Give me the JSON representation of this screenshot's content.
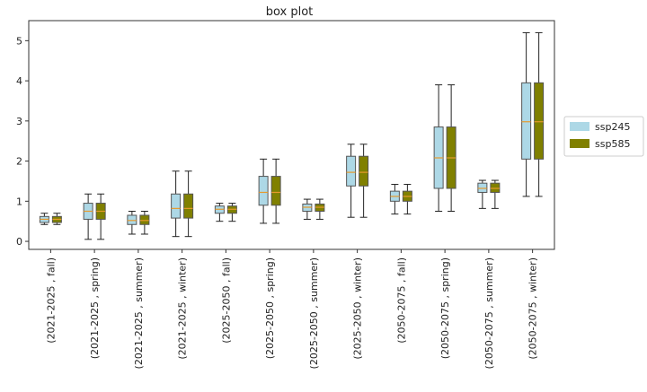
{
  "chart_data": {
    "type": "box",
    "title": "box plot",
    "xlabel": "",
    "ylabel": "",
    "ylim": [
      -0.2,
      5.5
    ],
    "yticks": [
      0,
      1,
      2,
      3,
      4,
      5
    ],
    "legend": "right",
    "grid": false,
    "categories": [
      "(2021-2025 , fall)",
      "(2021-2025 , spring)",
      "(2021-2025 , summer)",
      "(2021-2025 , winter)",
      "(2025-2050 , fall)",
      "(2025-2050 , spring)",
      "(2025-2050 , summer)",
      "(2025-2050 , winter)",
      "(2050-2075 , fall)",
      "(2050-2075 , spring)",
      "(2050-2075 , summer)",
      "(2050-2075 , winter)"
    ],
    "series": [
      {
        "name": "ssp245",
        "color": "#add8e6",
        "boxes": [
          {
            "min": 0.42,
            "q1": 0.47,
            "median": 0.55,
            "q3": 0.62,
            "max": 0.7
          },
          {
            "min": 0.05,
            "q1": 0.55,
            "median": 0.75,
            "q3": 0.95,
            "max": 1.18
          },
          {
            "min": 0.18,
            "q1": 0.42,
            "median": 0.52,
            "q3": 0.65,
            "max": 0.75
          },
          {
            "min": 0.12,
            "q1": 0.58,
            "median": 0.82,
            "q3": 1.18,
            "max": 1.75
          },
          {
            "min": 0.5,
            "q1": 0.7,
            "median": 0.8,
            "q3": 0.88,
            "max": 0.95
          },
          {
            "min": 0.45,
            "q1": 0.9,
            "median": 1.22,
            "q3": 1.62,
            "max": 2.05
          },
          {
            "min": 0.55,
            "q1": 0.75,
            "median": 0.85,
            "q3": 0.93,
            "max": 1.05
          },
          {
            "min": 0.6,
            "q1": 1.38,
            "median": 1.72,
            "q3": 2.12,
            "max": 2.42
          },
          {
            "min": 0.68,
            "q1": 1.0,
            "median": 1.12,
            "q3": 1.25,
            "max": 1.42
          },
          {
            "min": 0.75,
            "q1": 1.32,
            "median": 2.08,
            "q3": 2.85,
            "max": 3.9
          },
          {
            "min": 0.82,
            "q1": 1.22,
            "median": 1.32,
            "q3": 1.45,
            "max": 1.52
          },
          {
            "min": 1.12,
            "q1": 2.05,
            "median": 2.98,
            "q3": 3.95,
            "max": 5.2
          }
        ]
      },
      {
        "name": "ssp585",
        "color": "#808000",
        "boxes": [
          {
            "min": 0.42,
            "q1": 0.47,
            "median": 0.55,
            "q3": 0.62,
            "max": 0.7
          },
          {
            "min": 0.05,
            "q1": 0.55,
            "median": 0.75,
            "q3": 0.95,
            "max": 1.18
          },
          {
            "min": 0.18,
            "q1": 0.42,
            "median": 0.52,
            "q3": 0.65,
            "max": 0.75
          },
          {
            "min": 0.12,
            "q1": 0.58,
            "median": 0.82,
            "q3": 1.18,
            "max": 1.75
          },
          {
            "min": 0.5,
            "q1": 0.7,
            "median": 0.8,
            "q3": 0.88,
            "max": 0.95
          },
          {
            "min": 0.45,
            "q1": 0.9,
            "median": 1.22,
            "q3": 1.62,
            "max": 2.05
          },
          {
            "min": 0.55,
            "q1": 0.75,
            "median": 0.85,
            "q3": 0.93,
            "max": 1.05
          },
          {
            "min": 0.6,
            "q1": 1.38,
            "median": 1.72,
            "q3": 2.12,
            "max": 2.42
          },
          {
            "min": 0.68,
            "q1": 1.0,
            "median": 1.12,
            "q3": 1.25,
            "max": 1.42
          },
          {
            "min": 0.75,
            "q1": 1.32,
            "median": 2.08,
            "q3": 2.85,
            "max": 3.9
          },
          {
            "min": 0.82,
            "q1": 1.22,
            "median": 1.32,
            "q3": 1.45,
            "max": 1.52
          },
          {
            "min": 1.12,
            "q1": 2.05,
            "median": 2.98,
            "q3": 3.95,
            "max": 5.2
          }
        ]
      }
    ]
  }
}
